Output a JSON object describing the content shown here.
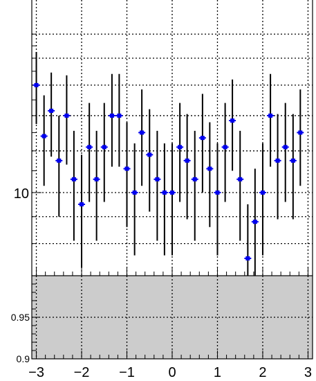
{
  "chart_data": [
    {
      "type": "scatter",
      "panel": "upper",
      "y_scale": "log",
      "xlim": [
        -3.1,
        3.1
      ],
      "ylim_visible_bottom": 7.0,
      "grid": true,
      "marker_color": "#0000ee",
      "errorbar_color": "#000000",
      "y_tick_labels": [
        "10"
      ],
      "points": [
        {
          "x": -3.0,
          "y": 16.0,
          "err": 2.5
        },
        {
          "x": -2.83,
          "y": 12.8,
          "err": 2.5
        },
        {
          "x": -2.67,
          "y": 14.3,
          "err": 2.6
        },
        {
          "x": -2.5,
          "y": 11.5,
          "err": 2.5
        },
        {
          "x": -2.33,
          "y": 14.0,
          "err": 2.7
        },
        {
          "x": -2.17,
          "y": 10.6,
          "err": 2.5
        },
        {
          "x": -2.0,
          "y": 9.5,
          "err": 2.3
        },
        {
          "x": -1.83,
          "y": 12.2,
          "err": 2.6
        },
        {
          "x": -1.67,
          "y": 10.6,
          "err": 2.5
        },
        {
          "x": -1.5,
          "y": 12.2,
          "err": 2.6
        },
        {
          "x": -1.33,
          "y": 14.0,
          "err": 2.8
        },
        {
          "x": -1.17,
          "y": 14.0,
          "err": 2.8
        },
        {
          "x": -1.0,
          "y": 11.1,
          "err": 2.5
        },
        {
          "x": -0.83,
          "y": 10.0,
          "err": 2.4
        },
        {
          "x": -0.67,
          "y": 13.0,
          "err": 2.7
        },
        {
          "x": -0.5,
          "y": 11.8,
          "err": 2.6
        },
        {
          "x": -0.33,
          "y": 10.6,
          "err": 2.5
        },
        {
          "x": -0.17,
          "y": 10.0,
          "err": 2.4
        },
        {
          "x": 0.0,
          "y": 10.0,
          "err": 2.4
        },
        {
          "x": 0.17,
          "y": 12.2,
          "err": 2.6
        },
        {
          "x": 0.33,
          "y": 11.5,
          "err": 2.6
        },
        {
          "x": 0.5,
          "y": 10.6,
          "err": 2.5
        },
        {
          "x": 0.67,
          "y": 12.7,
          "err": 2.7
        },
        {
          "x": 0.83,
          "y": 11.1,
          "err": 2.5
        },
        {
          "x": 1.0,
          "y": 10.0,
          "err": 2.4
        },
        {
          "x": 1.17,
          "y": 12.2,
          "err": 2.6
        },
        {
          "x": 1.33,
          "y": 13.7,
          "err": 2.7
        },
        {
          "x": 1.5,
          "y": 10.6,
          "err": 2.5
        },
        {
          "x": 1.67,
          "y": 7.5,
          "err": 2.0
        },
        {
          "x": 1.83,
          "y": 8.8,
          "err": 2.3
        },
        {
          "x": 2.0,
          "y": 10.0,
          "err": 2.4
        },
        {
          "x": 2.17,
          "y": 14.0,
          "err": 2.8
        },
        {
          "x": 2.33,
          "y": 11.5,
          "err": 2.6
        },
        {
          "x": 2.5,
          "y": 12.2,
          "err": 2.6
        },
        {
          "x": 2.67,
          "y": 11.5,
          "err": 2.6
        },
        {
          "x": 2.83,
          "y": 13.0,
          "err": 2.7
        }
      ]
    },
    {
      "type": "area",
      "panel": "lower",
      "fill_color": "#cccccc",
      "ylim": [
        0.9,
        1.0
      ],
      "xlim": [
        -3.1,
        3.1
      ],
      "grid": true,
      "y_tick_labels": [
        "0.9",
        "0.95"
      ],
      "x_tick_labels": [
        "−3",
        "−2",
        "−1",
        "0",
        "1",
        "2",
        "3"
      ]
    }
  ]
}
